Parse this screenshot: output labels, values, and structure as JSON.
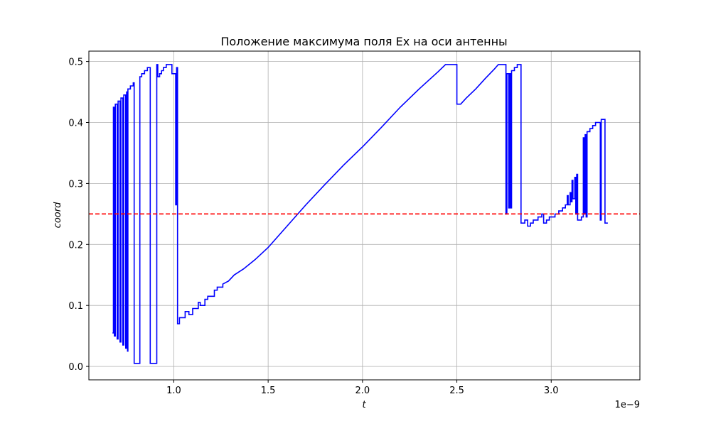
{
  "chart_data": {
    "type": "line",
    "title": "Положение максимума поля Ex на оси антенны",
    "xlabel": "t",
    "ylabel": "coord",
    "x_offset_label": "1e−9",
    "x_scale": 1e-09,
    "xlim": [
      0.55,
      3.47
    ],
    "ylim": [
      -0.022,
      0.517
    ],
    "grid": true,
    "x_ticks": [
      1.0,
      1.5,
      2.0,
      2.5,
      3.0
    ],
    "x_tick_labels": [
      "1.0",
      "1.5",
      "2.0",
      "2.5",
      "3.0"
    ],
    "y_ticks": [
      0.0,
      0.1,
      0.2,
      0.3,
      0.4,
      0.5
    ],
    "y_tick_labels": [
      "0.0",
      "0.1",
      "0.2",
      "0.3",
      "0.4",
      "0.5"
    ],
    "series": [
      {
        "color": "#0000ff",
        "style": "solid",
        "points": [
          [
            0.675,
            0.055
          ],
          [
            0.68,
            0.055
          ],
          [
            0.68,
            0.425
          ],
          [
            0.685,
            0.425
          ],
          [
            0.685,
            0.05
          ],
          [
            0.69,
            0.05
          ],
          [
            0.69,
            0.43
          ],
          [
            0.7,
            0.43
          ],
          [
            0.7,
            0.045
          ],
          [
            0.705,
            0.045
          ],
          [
            0.705,
            0.435
          ],
          [
            0.715,
            0.435
          ],
          [
            0.715,
            0.04
          ],
          [
            0.72,
            0.04
          ],
          [
            0.72,
            0.44
          ],
          [
            0.73,
            0.44
          ],
          [
            0.73,
            0.035
          ],
          [
            0.735,
            0.035
          ],
          [
            0.735,
            0.445
          ],
          [
            0.745,
            0.445
          ],
          [
            0.745,
            0.03
          ],
          [
            0.75,
            0.03
          ],
          [
            0.75,
            0.45
          ],
          [
            0.755,
            0.45
          ],
          [
            0.755,
            0.025
          ],
          [
            0.757,
            0.025
          ],
          [
            0.757,
            0.455
          ],
          [
            0.77,
            0.455
          ],
          [
            0.77,
            0.46
          ],
          [
            0.785,
            0.46
          ],
          [
            0.785,
            0.465
          ],
          [
            0.79,
            0.465
          ],
          [
            0.79,
            0.005
          ],
          [
            0.82,
            0.005
          ],
          [
            0.82,
            0.475
          ],
          [
            0.83,
            0.475
          ],
          [
            0.83,
            0.48
          ],
          [
            0.845,
            0.48
          ],
          [
            0.845,
            0.485
          ],
          [
            0.86,
            0.485
          ],
          [
            0.86,
            0.49
          ],
          [
            0.875,
            0.49
          ],
          [
            0.875,
            0.005
          ],
          [
            0.91,
            0.005
          ],
          [
            0.91,
            0.495
          ],
          [
            0.915,
            0.495
          ],
          [
            0.915,
            0.475
          ],
          [
            0.925,
            0.475
          ],
          [
            0.925,
            0.48
          ],
          [
            0.935,
            0.48
          ],
          [
            0.935,
            0.485
          ],
          [
            0.945,
            0.485
          ],
          [
            0.945,
            0.49
          ],
          [
            0.96,
            0.49
          ],
          [
            0.96,
            0.495
          ],
          [
            0.99,
            0.495
          ],
          [
            0.99,
            0.48
          ],
          [
            1.01,
            0.48
          ],
          [
            1.01,
            0.265
          ],
          [
            1.015,
            0.265
          ],
          [
            1.015,
            0.49
          ],
          [
            1.02,
            0.49
          ],
          [
            1.02,
            0.07
          ],
          [
            1.03,
            0.07
          ],
          [
            1.03,
            0.08
          ],
          [
            1.06,
            0.08
          ],
          [
            1.06,
            0.09
          ],
          [
            1.08,
            0.09
          ],
          [
            1.08,
            0.085
          ],
          [
            1.1,
            0.085
          ],
          [
            1.1,
            0.095
          ],
          [
            1.13,
            0.095
          ],
          [
            1.13,
            0.105
          ],
          [
            1.14,
            0.105
          ],
          [
            1.14,
            0.1
          ],
          [
            1.165,
            0.1
          ],
          [
            1.165,
            0.11
          ],
          [
            1.18,
            0.11
          ],
          [
            1.18,
            0.115
          ],
          [
            1.215,
            0.115
          ],
          [
            1.215,
            0.125
          ],
          [
            1.23,
            0.125
          ],
          [
            1.23,
            0.13
          ],
          [
            1.26,
            0.13
          ],
          [
            1.26,
            0.135
          ],
          [
            1.29,
            0.14
          ],
          [
            1.32,
            0.15
          ],
          [
            1.37,
            0.16
          ],
          [
            1.43,
            0.175
          ],
          [
            1.5,
            0.195
          ],
          [
            1.6,
            0.23
          ],
          [
            1.7,
            0.265
          ],
          [
            1.8,
            0.298
          ],
          [
            1.9,
            0.33
          ],
          [
            2.0,
            0.36
          ],
          [
            2.1,
            0.392
          ],
          [
            2.2,
            0.425
          ],
          [
            2.3,
            0.455
          ],
          [
            2.4,
            0.483
          ],
          [
            2.44,
            0.495
          ],
          [
            2.5,
            0.495
          ],
          [
            2.5,
            0.43
          ],
          [
            2.52,
            0.43
          ],
          [
            2.55,
            0.44
          ],
          [
            2.6,
            0.455
          ],
          [
            2.65,
            0.472
          ],
          [
            2.7,
            0.488
          ],
          [
            2.72,
            0.495
          ],
          [
            2.76,
            0.495
          ],
          [
            2.76,
            0.25
          ],
          [
            2.765,
            0.25
          ],
          [
            2.765,
            0.48
          ],
          [
            2.775,
            0.48
          ],
          [
            2.775,
            0.26
          ],
          [
            2.78,
            0.26
          ],
          [
            2.78,
            0.48
          ],
          [
            2.785,
            0.48
          ],
          [
            2.785,
            0.26
          ],
          [
            2.79,
            0.26
          ],
          [
            2.79,
            0.485
          ],
          [
            2.805,
            0.485
          ],
          [
            2.805,
            0.49
          ],
          [
            2.82,
            0.49
          ],
          [
            2.82,
            0.495
          ],
          [
            2.84,
            0.495
          ],
          [
            2.84,
            0.235
          ],
          [
            2.86,
            0.235
          ],
          [
            2.86,
            0.24
          ],
          [
            2.875,
            0.24
          ],
          [
            2.875,
            0.23
          ],
          [
            2.89,
            0.23
          ],
          [
            2.89,
            0.235
          ],
          [
            2.905,
            0.235
          ],
          [
            2.905,
            0.24
          ],
          [
            2.93,
            0.24
          ],
          [
            2.93,
            0.245
          ],
          [
            2.95,
            0.245
          ],
          [
            2.95,
            0.25
          ],
          [
            2.96,
            0.25
          ],
          [
            2.96,
            0.235
          ],
          [
            2.975,
            0.235
          ],
          [
            2.975,
            0.24
          ],
          [
            2.99,
            0.24
          ],
          [
            2.99,
            0.245
          ],
          [
            3.02,
            0.245
          ],
          [
            3.02,
            0.25
          ],
          [
            3.04,
            0.25
          ],
          [
            3.04,
            0.255
          ],
          [
            3.06,
            0.255
          ],
          [
            3.06,
            0.26
          ],
          [
            3.075,
            0.26
          ],
          [
            3.075,
            0.265
          ],
          [
            3.085,
            0.265
          ],
          [
            3.085,
            0.28
          ],
          [
            3.09,
            0.28
          ],
          [
            3.09,
            0.265
          ],
          [
            3.1,
            0.265
          ],
          [
            3.1,
            0.285
          ],
          [
            3.105,
            0.285
          ],
          [
            3.105,
            0.27
          ],
          [
            3.11,
            0.27
          ],
          [
            3.11,
            0.305
          ],
          [
            3.115,
            0.305
          ],
          [
            3.115,
            0.275
          ],
          [
            3.125,
            0.275
          ],
          [
            3.125,
            0.31
          ],
          [
            3.13,
            0.31
          ],
          [
            3.13,
            0.25
          ],
          [
            3.135,
            0.25
          ],
          [
            3.135,
            0.315
          ],
          [
            3.14,
            0.315
          ],
          [
            3.14,
            0.24
          ],
          [
            3.16,
            0.24
          ],
          [
            3.16,
            0.245
          ],
          [
            3.17,
            0.245
          ],
          [
            3.17,
            0.375
          ],
          [
            3.175,
            0.375
          ],
          [
            3.175,
            0.25
          ],
          [
            3.18,
            0.25
          ],
          [
            3.18,
            0.38
          ],
          [
            3.185,
            0.38
          ],
          [
            3.185,
            0.245
          ],
          [
            3.19,
            0.245
          ],
          [
            3.19,
            0.385
          ],
          [
            3.205,
            0.385
          ],
          [
            3.205,
            0.39
          ],
          [
            3.22,
            0.39
          ],
          [
            3.22,
            0.395
          ],
          [
            3.235,
            0.395
          ],
          [
            3.235,
            0.4
          ],
          [
            3.26,
            0.4
          ],
          [
            3.26,
            0.24
          ],
          [
            3.265,
            0.24
          ],
          [
            3.265,
            0.405
          ],
          [
            3.285,
            0.405
          ],
          [
            3.285,
            0.235
          ],
          [
            3.3,
            0.235
          ]
        ]
      }
    ],
    "reference_lines": [
      {
        "orientation": "horizontal",
        "y": 0.25,
        "color": "#ff0000",
        "style": "dashed"
      }
    ]
  }
}
